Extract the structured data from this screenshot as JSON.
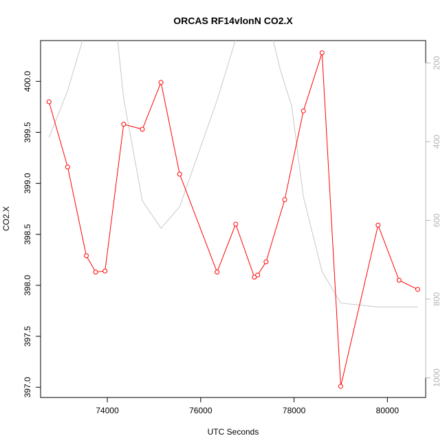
{
  "chart_data": {
    "type": "line",
    "title": "ORCAS RF14vlonN CO2.X",
    "xlabel": "UTC Seconds",
    "ylabel": "CO2.X",
    "xlim": [
      72570,
      80820
    ],
    "ylim": [
      396.9,
      400.4
    ],
    "x_ticks": [
      74000,
      76000,
      78000,
      80000
    ],
    "y_ticks": [
      397.0,
      397.5,
      398.0,
      398.5,
      399.0,
      399.5,
      400.0
    ],
    "y_tick_labels": [
      "397.0",
      "397.5",
      "398.0",
      "398.5",
      "399.0",
      "399.5",
      "400.0"
    ],
    "y2lim": [
      1050,
      143
    ],
    "y2_ticks": [
      200,
      400,
      600,
      800,
      1000
    ],
    "y2_tick_labels": [
      "200",
      "400",
      "600",
      "800",
      "1000"
    ],
    "grid": false,
    "series": [
      {
        "color": "#ff0000",
        "axis": "left",
        "markers": "open-circle",
        "x": [
          72750,
          73150,
          73550,
          73750,
          73950,
          74350,
          74750,
          75150,
          75550,
          76350,
          76750,
          77150,
          77220,
          77400,
          77800,
          78200,
          78600,
          79000,
          79800,
          80250,
          80650
        ],
        "y": [
          399.8,
          399.16,
          398.29,
          398.13,
          398.14,
          399.58,
          399.53,
          399.99,
          399.09,
          398.13,
          398.6,
          398.08,
          398.1,
          398.23,
          398.84,
          399.71,
          400.28,
          397.01,
          398.59,
          398.05,
          397.96
        ]
      },
      {
        "color": "#c8c8c8",
        "axis": "right",
        "markers": "none",
        "x": [
          72750,
          73150,
          73450,
          73550,
          74150,
          74350,
          74750,
          75150,
          75550,
          75950,
          76350,
          76750,
          77050,
          77250,
          77550,
          77700,
          77950,
          78200,
          78600,
          79000,
          79800,
          80250,
          80650
        ],
        "y": [
          390,
          270,
          150,
          60,
          60,
          290,
          550,
          620,
          565,
          430,
          295,
          140,
          50,
          50,
          140,
          215,
          310,
          540,
          730,
          810,
          820,
          820,
          820
        ]
      }
    ]
  }
}
